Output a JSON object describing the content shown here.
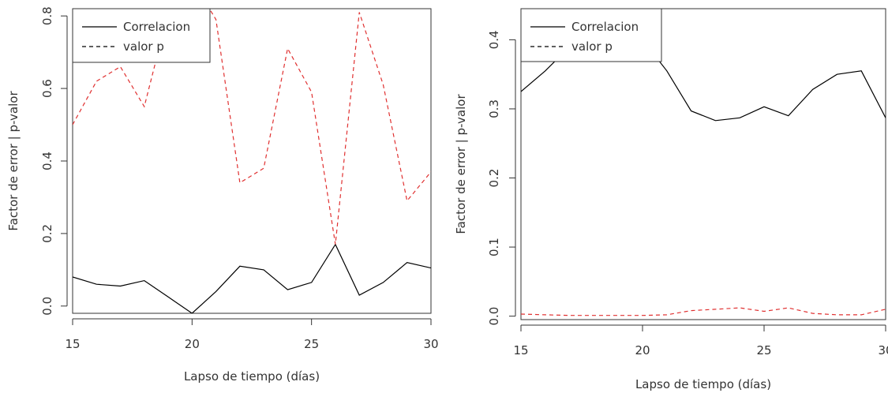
{
  "chart_data": [
    {
      "type": "line",
      "title": "",
      "xlabel": "Lapso de tiempo (días)",
      "ylabel": "Factor de error | p-valor",
      "xlim": [
        15,
        30
      ],
      "ylim": [
        -0.02,
        0.82
      ],
      "x_ticks": [
        "15",
        "20",
        "25",
        "30"
      ],
      "y_ticks": [
        "0.0",
        "0.2",
        "0.4",
        "0.6",
        "0.8"
      ],
      "legend_position": "top-left",
      "grid": false,
      "x": [
        15,
        16,
        17,
        18,
        19,
        20,
        21,
        22,
        23,
        24,
        25,
        26,
        27,
        28,
        29,
        30
      ],
      "series": [
        {
          "name": "Correlacion",
          "style": "solid",
          "color": "#000000",
          "values": [
            0.08,
            0.06,
            0.055,
            0.07,
            0.025,
            -0.02,
            0.04,
            0.11,
            0.1,
            0.045,
            0.065,
            0.17,
            0.03,
            0.065,
            0.12,
            0.105
          ]
        },
        {
          "name": "valor p",
          "style": "dashed",
          "color": "#e03030",
          "values": [
            0.5,
            0.62,
            0.66,
            0.55,
            0.81,
            0.9,
            0.79,
            0.34,
            0.38,
            0.71,
            0.59,
            0.17,
            0.81,
            0.61,
            0.29,
            0.37
          ]
        }
      ]
    },
    {
      "type": "line",
      "title": "",
      "xlabel": "Lapso de tiempo (días)",
      "ylabel": "Factor de error | p-valor",
      "xlim": [
        15,
        30
      ],
      "ylim": [
        -0.005,
        0.445
      ],
      "x_ticks": [
        "15",
        "20",
        "25",
        "30"
      ],
      "y_ticks": [
        "0.0",
        "0.1",
        "0.2",
        "0.3",
        "0.4"
      ],
      "legend_position": "top-left",
      "grid": false,
      "x": [
        15,
        16,
        17,
        18,
        19,
        20,
        21,
        22,
        23,
        24,
        25,
        26,
        27,
        28,
        29,
        30
      ],
      "series": [
        {
          "name": "Correlacion",
          "style": "solid",
          "color": "#000000",
          "values": [
            0.325,
            0.355,
            0.39,
            0.41,
            0.42,
            0.4,
            0.355,
            0.297,
            0.283,
            0.287,
            0.303,
            0.29,
            0.328,
            0.35,
            0.355,
            0.287
          ]
        },
        {
          "name": "valor p",
          "style": "dashed",
          "color": "#e03030",
          "values": [
            0.003,
            0.002,
            0.001,
            0.001,
            0.001,
            0.001,
            0.002,
            0.008,
            0.01,
            0.012,
            0.007,
            0.012,
            0.004,
            0.002,
            0.002,
            0.01
          ]
        }
      ]
    }
  ]
}
